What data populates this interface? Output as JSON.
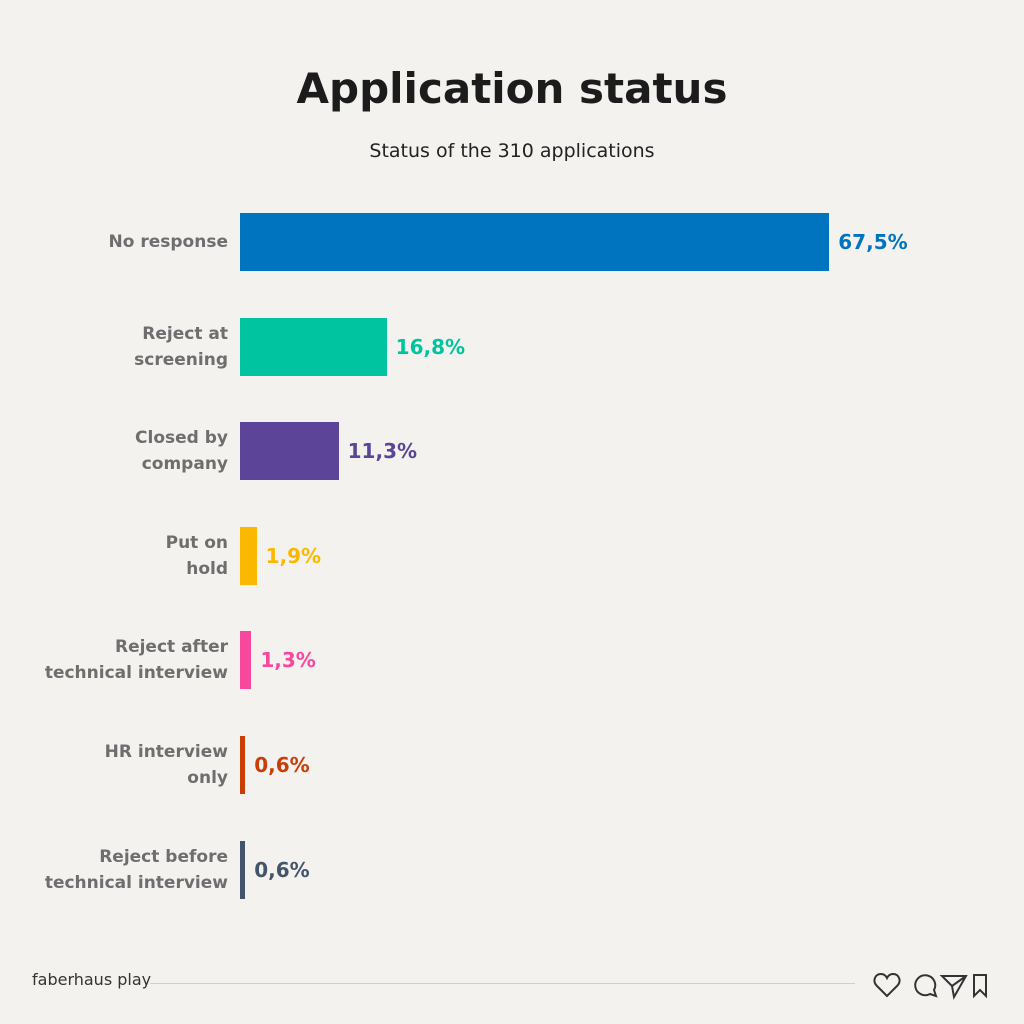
{
  "chart_data": {
    "type": "bar",
    "orientation": "horizontal",
    "title": "Application status",
    "subtitle": "Status of the 310 applications",
    "categories": [
      "No response",
      "Reject at\nscreening",
      "Closed by\ncompany",
      "Put on\nhold",
      "Reject after\ntechnical interview",
      "HR interview\nonly",
      "Reject before\ntechnical interview"
    ],
    "values": [
      67.5,
      16.8,
      11.3,
      1.9,
      1.3,
      0.6,
      0.6
    ],
    "value_labels": [
      "67,5%",
      "16,8%",
      "11,3%",
      "1,9%",
      "1,3%",
      "0,6%",
      "0,6%"
    ],
    "colors": [
      "#0174c0",
      "#00c49f",
      "#5c4598",
      "#fbb800",
      "#f7489e",
      "#c93d07",
      "#44546a"
    ]
  },
  "footer": {
    "brand": "faberhaus play"
  }
}
